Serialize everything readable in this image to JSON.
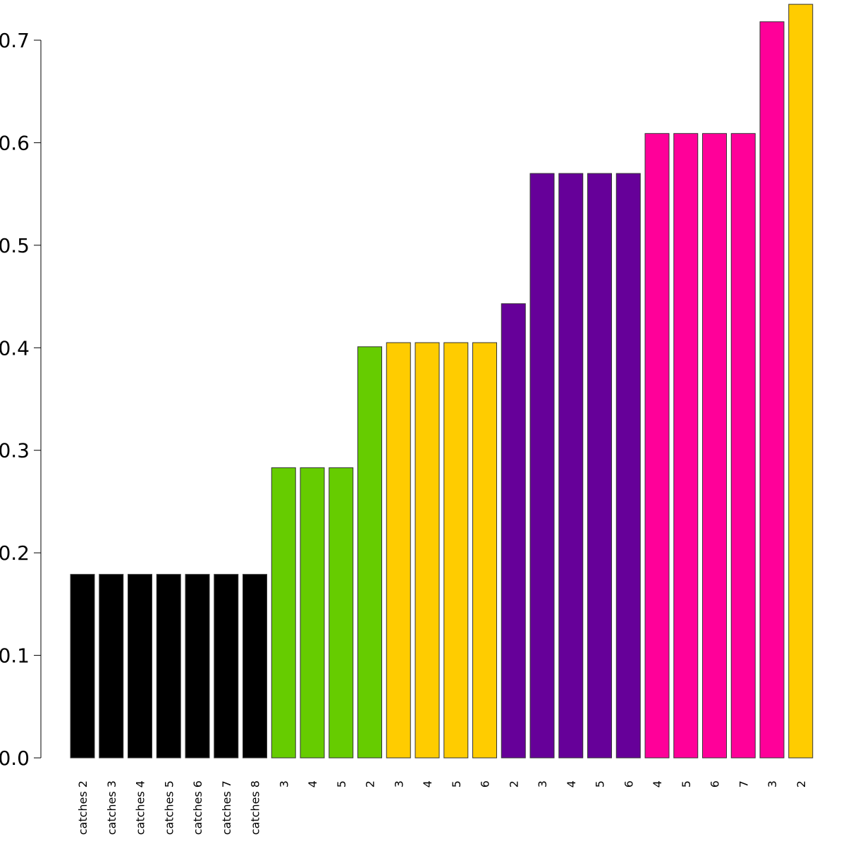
{
  "chart_data": {
    "type": "bar",
    "title": "",
    "xlabel": "",
    "ylabel": "",
    "ylim": [
      0,
      0.735
    ],
    "grid": false,
    "y_ticks": [
      "0.0",
      "0.1",
      "0.2",
      "0.3",
      "0.4",
      "0.5",
      "0.6",
      "0.7"
    ],
    "categories": [
      "catches 2",
      "catches 3",
      "catches 4",
      "catches 5",
      "catches 6",
      "catches 7",
      "catches 8",
      "3",
      "4",
      "5",
      "2",
      "3",
      "4",
      "5",
      "6",
      "2",
      "3",
      "4",
      "5",
      "6",
      "4",
      "5",
      "6",
      "7",
      "3",
      "2"
    ],
    "values": [
      0.179,
      0.179,
      0.179,
      0.179,
      0.179,
      0.179,
      0.179,
      0.283,
      0.283,
      0.283,
      0.401,
      0.405,
      0.405,
      0.405,
      0.405,
      0.443,
      0.57,
      0.57,
      0.57,
      0.57,
      0.609,
      0.609,
      0.609,
      0.609,
      0.718,
      0.735
    ],
    "bar_colors": [
      "#000000",
      "#000000",
      "#000000",
      "#000000",
      "#000000",
      "#000000",
      "#000000",
      "#66cc00",
      "#66cc00",
      "#66cc00",
      "#66cc00",
      "#ffcc00",
      "#ffcc00",
      "#ffcc00",
      "#ffcc00",
      "#660099",
      "#660099",
      "#660099",
      "#660099",
      "#660099",
      "#ff0099",
      "#ff0099",
      "#ff0099",
      "#ff0099",
      "#ff0099",
      "#ffcc00"
    ]
  }
}
